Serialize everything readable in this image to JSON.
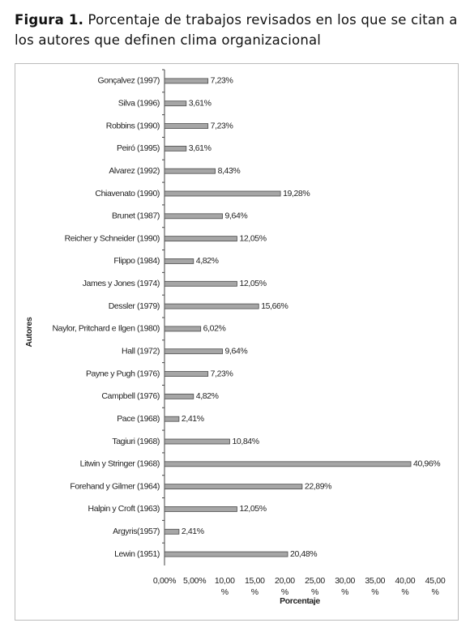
{
  "chart_data": {
    "type": "bar",
    "orientation": "horizontal",
    "figure_label": "Figura 1.",
    "title": "Porcentaje de trabajos revisados en los que se citan a los autores que definen clima organizacional",
    "x_label": "Porcentaje",
    "y_label": "Autores",
    "categories": [
      "Gonçalvez (1997)",
      "Silva (1996)",
      "Robbins (1990)",
      "Peiró (1995)",
      "Alvarez (1992)",
      "Chiavenato (1990)",
      "Brunet (1987)",
      "Reicher y Schneider (1990)",
      "Flippo (1984)",
      "James y Jones (1974)",
      "Dessler (1979)",
      "Naylor, Pritchard e Ilgen (1980)",
      "Hall (1972)",
      "Payne y Pugh (1976)",
      "Campbell (1976)",
      "Pace (1968)",
      "Tagiuri (1968)",
      "Litwin y Stringer (1968)",
      "Forehand y Gilmer (1964)",
      "Halpin y Croft (1963)",
      "Argyris(1957)",
      "Lewin (1951)"
    ],
    "values": [
      7.23,
      3.61,
      7.23,
      3.61,
      8.43,
      19.28,
      9.64,
      12.05,
      4.82,
      12.05,
      15.66,
      6.02,
      9.64,
      7.23,
      4.82,
      2.41,
      10.84,
      40.96,
      22.89,
      12.05,
      2.41,
      20.48
    ],
    "value_labels": [
      "7,23%",
      "3,61%",
      "7,23%",
      "3,61%",
      "8,43%",
      "19,28%",
      "9,64%",
      "12,05%",
      "4,82%",
      "12,05%",
      "15,66%",
      "6,02%",
      "9,64%",
      "7,23%",
      "4,82%",
      "2,41%",
      "10,84%",
      "40,96%",
      "22,89%",
      "12,05%",
      "2,41%",
      "20,48%"
    ],
    "color": "#a6a6a6",
    "xlim": [
      0,
      45
    ],
    "xticks": [
      {
        "value": 0,
        "label": "0,00%"
      },
      {
        "value": 5,
        "label": "5,00%"
      },
      {
        "value": 10,
        "label": "10,00 %"
      },
      {
        "value": 15,
        "label": "15,00 %"
      },
      {
        "value": 20,
        "label": "20,00 %"
      },
      {
        "value": 25,
        "label": "25,00 %"
      },
      {
        "value": 30,
        "label": "30,00 %"
      },
      {
        "value": 35,
        "label": "35,00 %"
      },
      {
        "value": 40,
        "label": "40,00 %"
      },
      {
        "value": 45,
        "label": "45,00 %"
      }
    ],
    "grid": false
  }
}
